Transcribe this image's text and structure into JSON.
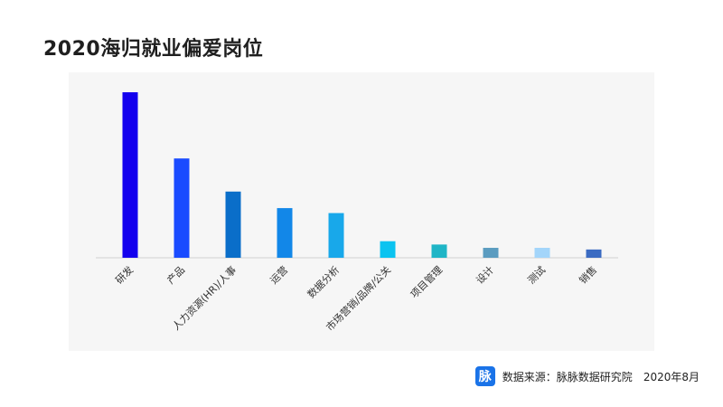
{
  "title": "2020海归就业偏爱岗位",
  "footer": {
    "logo_text": "脉",
    "source": "数据来源：脉脉数据研究院",
    "date": "2020年8月"
  },
  "chart_data": {
    "type": "bar",
    "title": "2020海归就业偏爱岗位",
    "xlabel": "",
    "ylabel": "",
    "ylim": [
      0,
      100
    ],
    "grid": false,
    "categories": [
      "研发",
      "产品",
      "人力资源(HR)/人事",
      "运营",
      "数据分析",
      "市场营销/品牌/公关",
      "项目管理",
      "设计",
      "测试",
      "销售"
    ],
    "values": [
      100,
      60,
      40,
      30,
      27,
      10,
      8,
      6,
      6,
      5
    ],
    "colors": [
      "#1400ee",
      "#1a4bff",
      "#0a6ec9",
      "#1287e8",
      "#18a8ea",
      "#0bc3f0",
      "#1fb5c6",
      "#5b9cc0",
      "#a3d5fa",
      "#3b6bc2"
    ]
  }
}
